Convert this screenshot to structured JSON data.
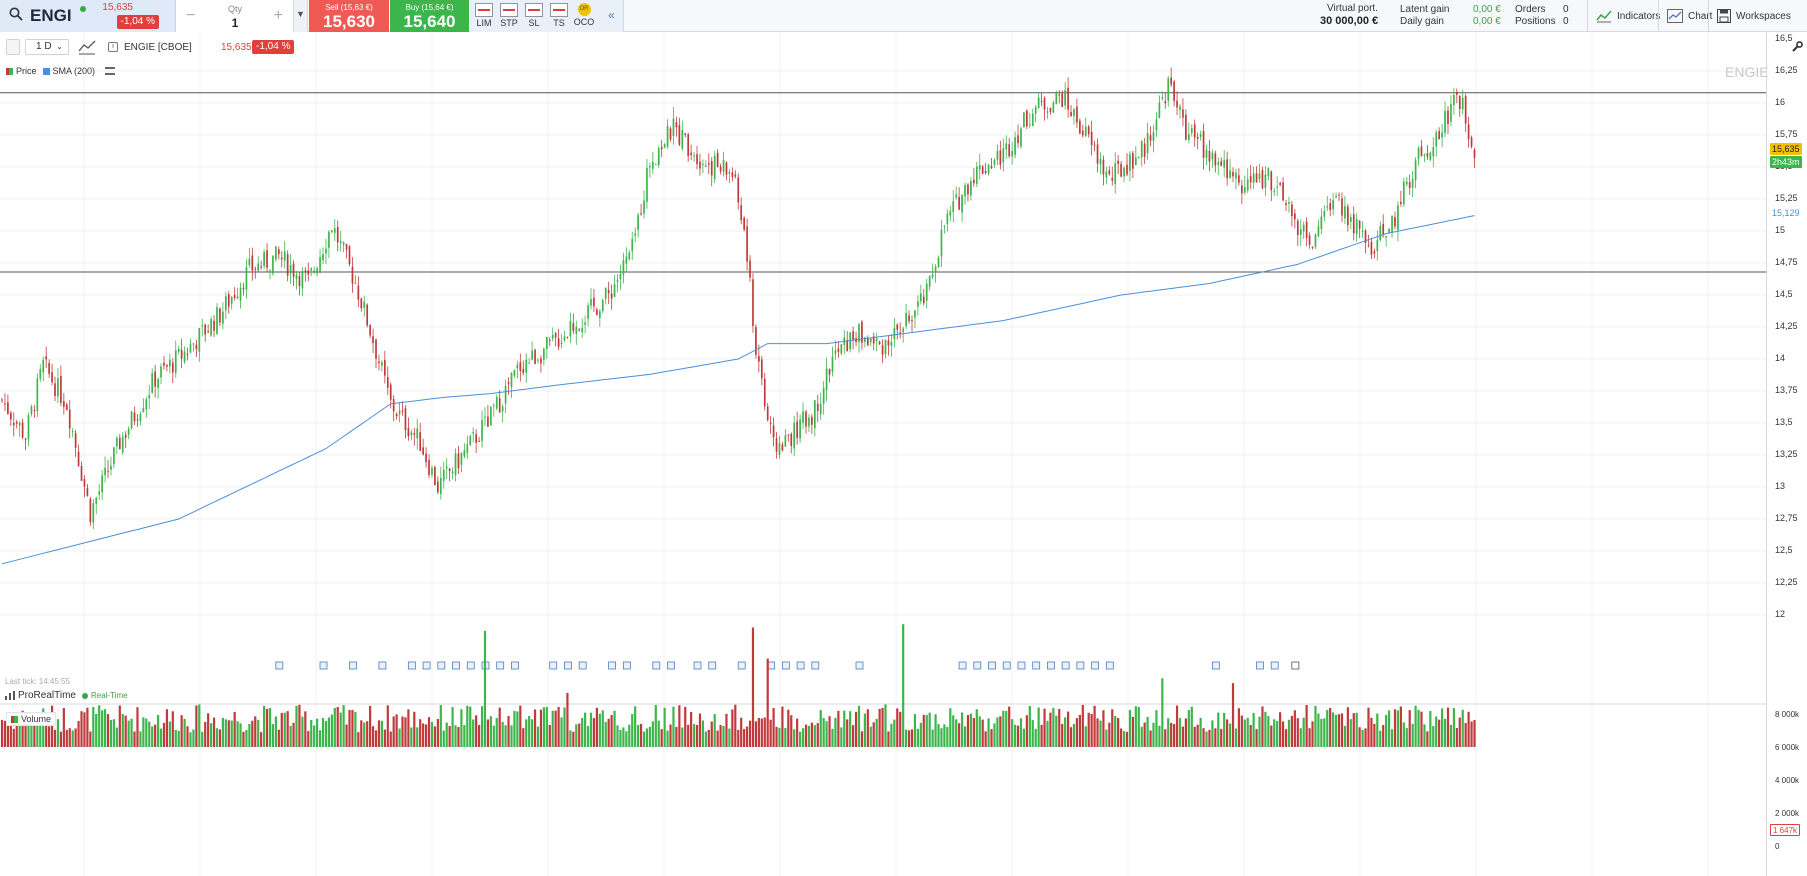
{
  "symbol": {
    "name": "ENGI",
    "last": "15,635",
    "change": "-1,04 %"
  },
  "qty": {
    "label": "Qty",
    "value": "1",
    "minus": "−",
    "plus": "+"
  },
  "sell": {
    "label": "Sell (15,63 €)",
    "price": "15,630"
  },
  "buy": {
    "label": "Buy (15,64 €)",
    "price": "15,640"
  },
  "order_types": [
    "LIM",
    "STP",
    "SL",
    "TS",
    "OCO"
  ],
  "oco_badge": "OR",
  "account": {
    "virtual_label": "Virtual port.",
    "virtual_value": "30 000,00 €",
    "latent_label": "Latent gain",
    "latent_value": "0,00 €",
    "daily_label": "Daily gain",
    "daily_value": "0,00 €",
    "orders_label": "Orders",
    "orders_value": "0",
    "positions_label": "Positions",
    "positions_value": "0"
  },
  "toolbar": {
    "indicators": "Indicators",
    "chart": "Chart",
    "workspaces": "Workspaces"
  },
  "chart_header": {
    "interval": "1 D",
    "instrument": "ENGIE [CBOE]",
    "last": "15,635",
    "change": "-1,04 %"
  },
  "legend": {
    "price": "Price",
    "sma": "SMA (200)",
    "volume": "Volume"
  },
  "watermark": "ENGIE",
  "last_tick": "Last tick: 14:45:55",
  "source": {
    "name": "ProRealTime",
    "mode": "Real-Time"
  },
  "colors": {
    "up": "#3cb54a",
    "down": "#c0393b",
    "sma": "#4a90d9",
    "accent": "#e0403d",
    "sell": "#f05a54",
    "buy": "#3cb54a"
  },
  "price_axis": {
    "ticks": [
      "16,5",
      "16,25",
      "16",
      "15,75",
      "15,5",
      "15,25",
      "15",
      "14,75",
      "14,5",
      "14,25",
      "14",
      "13,75",
      "13,5",
      "13,25",
      "13",
      "12,75",
      "12,5",
      "12,25",
      "12"
    ],
    "last_tag": "15,635",
    "countdown_tag": "2h43m",
    "sma_tag": "15,129"
  },
  "volume_axis": {
    "ticks": [
      "8 000k",
      "6 000k",
      "4 000k",
      "2 000k",
      "0"
    ],
    "last_tag": "1 647k"
  },
  "chart_data": [
    {
      "type": "candlestick",
      "title": "ENGIE [CBOE]",
      "interval": "1 D",
      "ylim": [
        12,
        16.5
      ],
      "series": [
        {
          "name": "Price",
          "style": "candles"
        },
        {
          "name": "SMA (200)",
          "style": "line",
          "last": 15.129
        }
      ],
      "horizontal_lines": [
        16.08,
        14.68
      ],
      "anchors": [
        [
          0,
          13.68
        ],
        [
          8,
          13.4
        ],
        [
          14,
          13.95
        ],
        [
          22,
          13.65
        ],
        [
          30,
          12.8
        ],
        [
          40,
          13.35
        ],
        [
          52,
          13.85
        ],
        [
          62,
          14.05
        ],
        [
          74,
          14.35
        ],
        [
          84,
          14.7
        ],
        [
          94,
          14.8
        ],
        [
          104,
          14.6
        ],
        [
          112,
          15.05
        ],
        [
          120,
          14.6
        ],
        [
          126,
          14.15
        ],
        [
          132,
          13.65
        ],
        [
          142,
          13.35
        ],
        [
          148,
          13.0
        ],
        [
          158,
          13.3
        ],
        [
          166,
          13.55
        ],
        [
          176,
          13.95
        ],
        [
          186,
          14.1
        ],
        [
          196,
          14.3
        ],
        [
          206,
          14.5
        ],
        [
          214,
          14.85
        ],
        [
          220,
          15.55
        ],
        [
          228,
          15.8
        ],
        [
          238,
          15.55
        ],
        [
          248,
          15.45
        ],
        [
          252,
          15.0
        ],
        [
          256,
          14.1
        ],
        [
          262,
          13.3
        ],
        [
          268,
          13.4
        ],
        [
          276,
          13.6
        ],
        [
          282,
          14.0
        ],
        [
          290,
          14.2
        ],
        [
          298,
          14.1
        ],
        [
          306,
          14.25
        ],
        [
          314,
          14.5
        ],
        [
          320,
          15.05
        ],
        [
          330,
          15.45
        ],
        [
          340,
          15.6
        ],
        [
          350,
          15.95
        ],
        [
          360,
          16.05
        ],
        [
          368,
          15.75
        ],
        [
          376,
          15.4
        ],
        [
          388,
          15.65
        ],
        [
          396,
          16.15
        ],
        [
          402,
          15.8
        ],
        [
          414,
          15.5
        ],
        [
          422,
          15.35
        ],
        [
          430,
          15.45
        ],
        [
          438,
          15.1
        ],
        [
          446,
          14.9
        ],
        [
          452,
          15.3
        ],
        [
          458,
          15.1
        ],
        [
          464,
          14.85
        ],
        [
          472,
          15.05
        ],
        [
          480,
          15.55
        ],
        [
          488,
          15.75
        ],
        [
          494,
          16.1
        ],
        [
          500,
          15.65
        ]
      ],
      "sma_path": [
        [
          0,
          12.4
        ],
        [
          60,
          12.75
        ],
        [
          110,
          13.3
        ],
        [
          132,
          13.65
        ],
        [
          150,
          13.7
        ],
        [
          166,
          13.73
        ],
        [
          190,
          13.8
        ],
        [
          220,
          13.88
        ],
        [
          250,
          14.0
        ],
        [
          260,
          14.12
        ],
        [
          280,
          14.12
        ],
        [
          300,
          14.18
        ],
        [
          340,
          14.3
        ],
        [
          380,
          14.5
        ],
        [
          410,
          14.59
        ],
        [
          440,
          14.74
        ],
        [
          470,
          14.98
        ],
        [
          500,
          15.12
        ]
      ]
    },
    {
      "type": "bar",
      "title": "Volume",
      "ylim": [
        0,
        8000
      ],
      "unit": "k",
      "last": 1647,
      "spikes": [
        [
          164,
          7100
        ],
        [
          192,
          3300
        ],
        [
          255,
          7300
        ],
        [
          260,
          5400
        ],
        [
          306,
          7500
        ],
        [
          394,
          4200
        ],
        [
          418,
          3900
        ]
      ]
    }
  ]
}
